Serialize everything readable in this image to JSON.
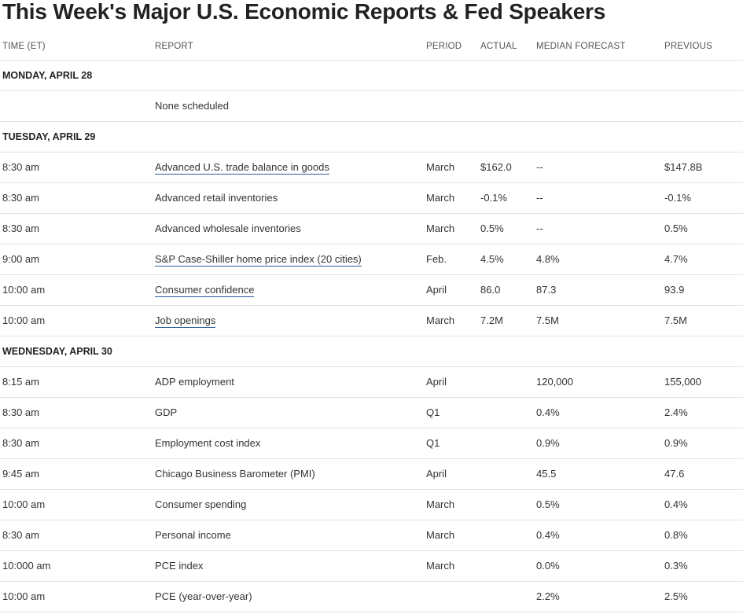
{
  "page": {
    "title": "This Week's Major U.S. Economic Reports & Fed Speakers"
  },
  "table": {
    "headers": {
      "time": "TIME (ET)",
      "report": "REPORT",
      "period": "PERIOD",
      "actual": "ACTUAL",
      "median": "MEDIAN FORECAST",
      "previous": "PREVIOUS"
    },
    "sections": [
      {
        "day": "MONDAY, APRIL 28",
        "rows": [
          {
            "time": "",
            "report": "None scheduled",
            "link": false,
            "period": "",
            "actual": "",
            "median": "",
            "previous": ""
          }
        ]
      },
      {
        "day": "TUESDAY, APRIL 29",
        "rows": [
          {
            "time": "8:30 am",
            "report": "Advanced U.S. trade balance in goods",
            "link": true,
            "period": "March",
            "actual": "$162.0",
            "median": "--",
            "previous": "$147.8B"
          },
          {
            "time": "8:30 am",
            "report": "Advanced retail inventories",
            "link": false,
            "period": "March",
            "actual": "-0.1%",
            "median": "--",
            "previous": "-0.1%"
          },
          {
            "time": "8:30 am",
            "report": "Advanced wholesale inventories",
            "link": false,
            "period": "March",
            "actual": "0.5%",
            "median": "--",
            "previous": "0.5%"
          },
          {
            "time": "9:00 am",
            "report": "S&P Case-Shiller home price index (20 cities)",
            "link": true,
            "period": "Feb.",
            "actual": "4.5%",
            "median": "4.8%",
            "previous": "4.7%"
          },
          {
            "time": "10:00 am",
            "report": "Consumer confidence",
            "link": true,
            "period": "April",
            "actual": "86.0",
            "median": "87.3",
            "previous": "93.9"
          },
          {
            "time": "10:00 am",
            "report": "Job openings",
            "link": true,
            "period": "March",
            "actual": "7.2M",
            "median": "7.5M",
            "previous": "7.5M"
          }
        ]
      },
      {
        "day": "WEDNESDAY, APRIL 30",
        "rows": [
          {
            "time": "8:15 am",
            "report": "ADP employment",
            "link": false,
            "period": "April",
            "actual": "",
            "median": "120,000",
            "previous": "155,000"
          },
          {
            "time": "8:30 am",
            "report": "GDP",
            "link": false,
            "period": "Q1",
            "actual": "",
            "median": "0.4%",
            "previous": "2.4%"
          },
          {
            "time": "8:30 am",
            "report": "Employment cost index",
            "link": false,
            "period": "Q1",
            "actual": "",
            "median": "0.9%",
            "previous": "0.9%"
          },
          {
            "time": "9:45 am",
            "report": "Chicago Business Barometer (PMI)",
            "link": false,
            "period": "April",
            "actual": "",
            "median": "45.5",
            "previous": "47.6"
          },
          {
            "time": "10:00 am",
            "report": "Consumer spending",
            "link": false,
            "period": "March",
            "actual": "",
            "median": "0.5%",
            "previous": "0.4%"
          },
          {
            "time": "8:30 am",
            "report": "Personal income",
            "link": false,
            "period": "March",
            "actual": "",
            "median": "0.4%",
            "previous": "0.8%"
          },
          {
            "time": "10:000 am",
            "report": "PCE index",
            "link": false,
            "period": "March",
            "actual": "",
            "median": "0.0%",
            "previous": "0.3%"
          },
          {
            "time": "10:00 am",
            "report": "PCE (year-over-year)",
            "link": false,
            "period": "",
            "actual": "",
            "median": "2.2%",
            "previous": "2.5%"
          }
        ]
      }
    ]
  }
}
